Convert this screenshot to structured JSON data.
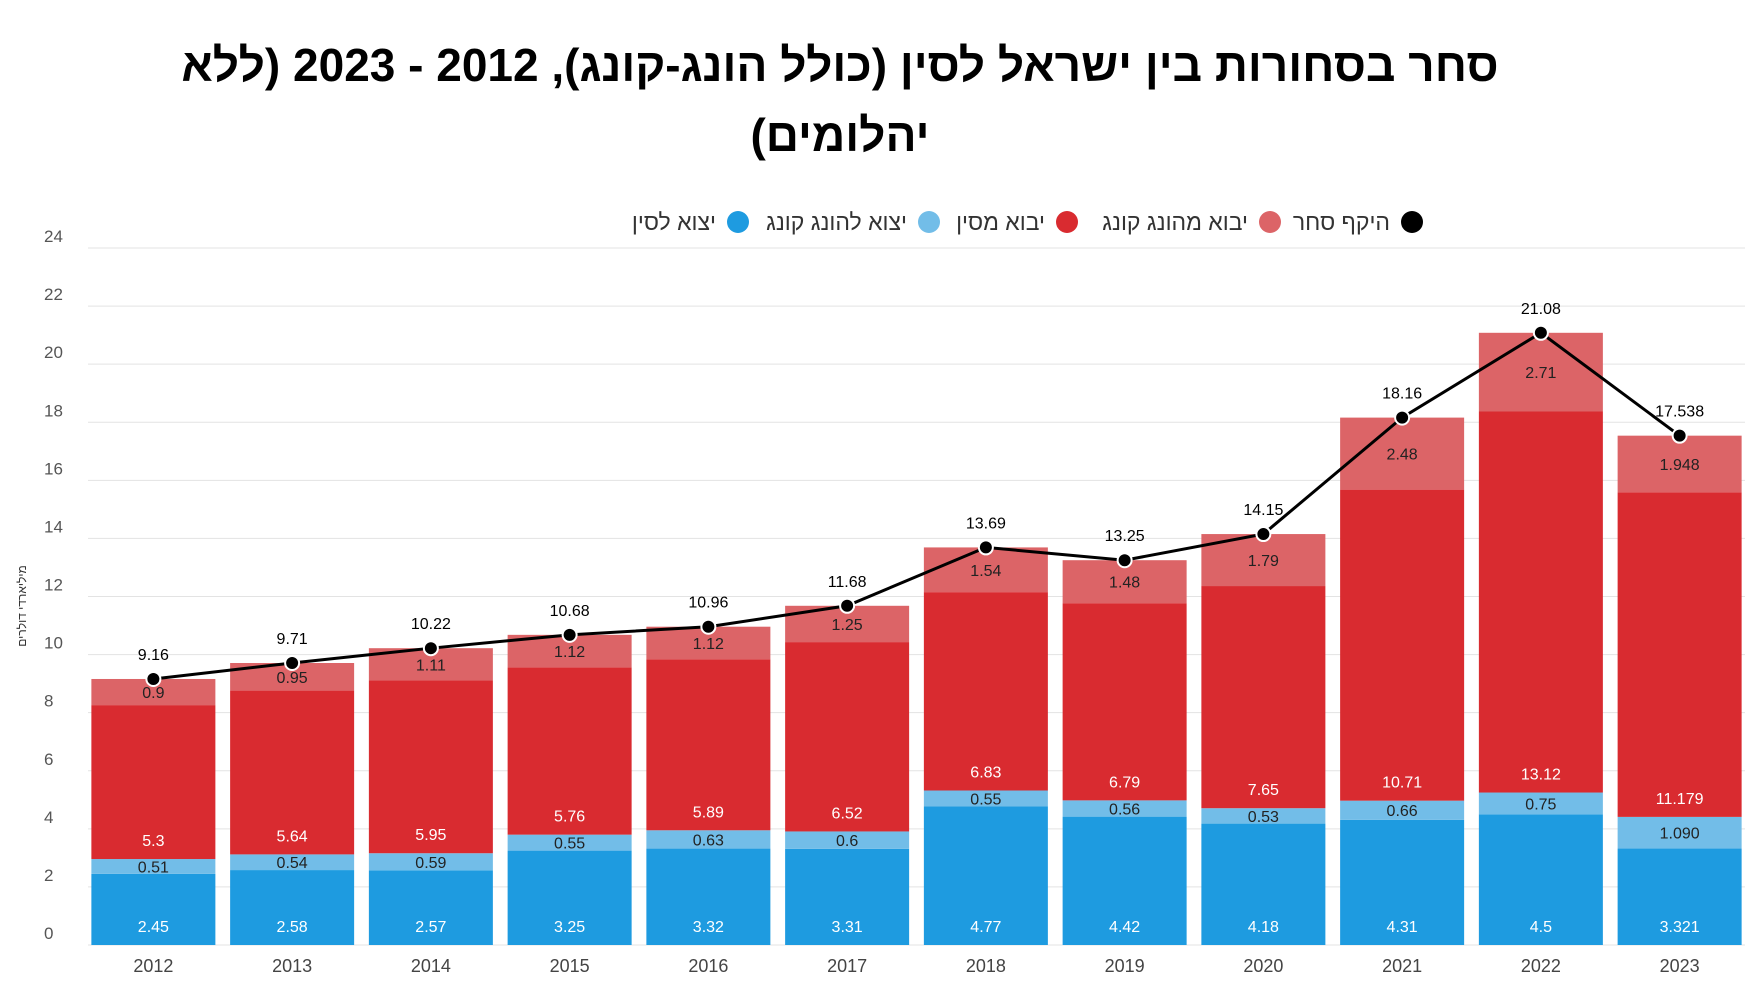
{
  "chart_data": {
    "type": "bar",
    "stacked": true,
    "title": "סחר בסחורות בין ישראל לסין (כולל הונג-קונג), 2012 - 2023 (ללא יהלומים)",
    "ylabel": "מיליארדי דולרים",
    "xlabel": "",
    "ylim": [
      0,
      24
    ],
    "yticks": [
      "0",
      "2",
      "4",
      "6",
      "8",
      "10",
      "12",
      "14",
      "16",
      "18",
      "20",
      "22",
      "24"
    ],
    "grid": true,
    "legend_position": "top",
    "categories": [
      "2012",
      "2013",
      "2014",
      "2015",
      "2016",
      "2017",
      "2018",
      "2019",
      "2020",
      "2021",
      "2022",
      "2023"
    ],
    "series": [
      {
        "name": "יצוא לסין",
        "kind": "bar",
        "color": "#1e9be0",
        "values": [
          2.45,
          2.58,
          2.57,
          3.25,
          3.32,
          3.31,
          4.77,
          4.42,
          4.18,
          4.31,
          4.5,
          3.321
        ],
        "labels": [
          "2.45",
          "2.58",
          "2.57",
          "3.25",
          "3.32",
          "3.31",
          "4.77",
          "4.42",
          "4.18",
          "4.31",
          "4.5",
          "3.321"
        ]
      },
      {
        "name": "יצוא להונג קונג",
        "kind": "bar",
        "color": "#72bde8",
        "values": [
          0.51,
          0.54,
          0.59,
          0.55,
          0.63,
          0.6,
          0.55,
          0.56,
          0.53,
          0.66,
          0.75,
          1.09
        ],
        "labels": [
          "0.51",
          "0.54",
          "0.59",
          "0.55",
          "0.63",
          "0.6",
          "0.55",
          "0.56",
          "0.53",
          "0.66",
          "0.75",
          "1.090"
        ]
      },
      {
        "name": "יבוא מסין",
        "kind": "bar",
        "color": "#d92b30",
        "values": [
          5.3,
          5.64,
          5.95,
          5.76,
          5.89,
          6.52,
          6.83,
          6.79,
          7.65,
          10.71,
          13.12,
          11.179
        ],
        "labels": [
          "5.3",
          "5.64",
          "5.95",
          "5.76",
          "5.89",
          "6.52",
          "6.83",
          "6.79",
          "7.65",
          "10.71",
          "13.12",
          "11.179"
        ]
      },
      {
        "name": "יבוא מהונג קונג",
        "kind": "bar",
        "color": "#dc6467",
        "values": [
          0.9,
          0.95,
          1.11,
          1.12,
          1.12,
          1.25,
          1.54,
          1.48,
          1.79,
          2.48,
          2.71,
          1.948
        ],
        "labels": [
          "0.9",
          "0.95",
          "1.11",
          "1.12",
          "1.12",
          "1.25",
          "1.54",
          "1.48",
          "1.79",
          "2.48",
          "2.71",
          "1.948"
        ]
      },
      {
        "name": "היקף סחר",
        "kind": "line",
        "color": "#000000",
        "values": [
          9.16,
          9.71,
          10.22,
          10.68,
          10.96,
          11.68,
          13.69,
          13.25,
          14.15,
          18.16,
          21.08,
          17.538
        ],
        "labels": [
          "9.16",
          "9.71",
          "10.22",
          "10.68",
          "10.96",
          "11.68",
          "13.69",
          "13.25",
          "14.15",
          "18.16",
          "21.08",
          "17.538"
        ]
      }
    ]
  }
}
